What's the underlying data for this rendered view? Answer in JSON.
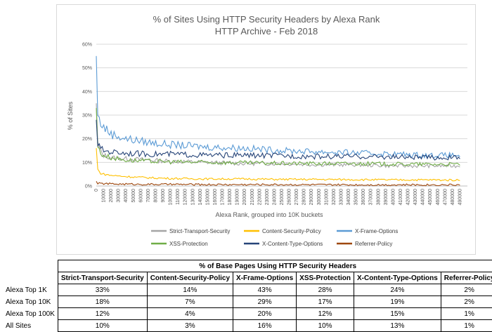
{
  "chart_data": {
    "type": "line",
    "title": "% of Sites Using HTTP Security Headers by Alexa Rank",
    "subtitle": "HTTP Archive - Feb 2018",
    "xlabel": "Alexa Rank, grouped into 10K buckets",
    "ylabel": "% of Sites",
    "ylim": [
      0,
      60
    ],
    "yticks": [
      "0%",
      "10%",
      "20%",
      "30%",
      "40%",
      "50%",
      "60%"
    ],
    "xticks": [
      "0",
      "10000",
      "20000",
      "30000",
      "40000",
      "50000",
      "60000",
      "70000",
      "80000",
      "90000",
      "100000",
      "110000",
      "120000",
      "130000",
      "140000",
      "150000",
      "160000",
      "170000",
      "180000",
      "190000",
      "200000",
      "210000",
      "220000",
      "230000",
      "240000",
      "250000",
      "260000",
      "270000",
      "280000",
      "290000",
      "300000",
      "310000",
      "320000",
      "330000",
      "340000",
      "350000",
      "360000",
      "370000",
      "380000",
      "390000",
      "400000",
      "410000",
      "420000",
      "430000",
      "440000",
      "450000",
      "460000",
      "470000",
      "480000",
      "490000"
    ],
    "grid": true,
    "legend_position": "bottom",
    "series": [
      {
        "name": "Strict-Transport-Security",
        "color": "#a5a5a5",
        "x": [
          0,
          1000,
          2000,
          5000,
          10000,
          20000,
          40000,
          70000,
          100000,
          150000,
          200000,
          250000,
          300000,
          350000,
          400000,
          450000,
          490000
        ],
        "values": [
          35,
          22,
          18,
          15,
          13,
          12,
          11.5,
          11,
          10.5,
          10,
          9.5,
          9.5,
          9,
          9,
          8.5,
          8.5,
          8.5
        ]
      },
      {
        "name": "Content-Security-Policy",
        "color": "#ffc000",
        "x": [
          0,
          1000,
          2000,
          5000,
          10000,
          20000,
          40000,
          70000,
          100000,
          150000,
          200000,
          250000,
          300000,
          350000,
          400000,
          450000,
          490000
        ],
        "values": [
          16,
          9,
          7,
          5.5,
          5,
          4.5,
          4,
          3.5,
          3.2,
          3,
          3,
          2.8,
          2.8,
          2.7,
          2.6,
          2.6,
          2.5
        ]
      },
      {
        "name": "X-Frame-Options",
        "color": "#5b9bd5",
        "x": [
          0,
          1000,
          2000,
          5000,
          10000,
          20000,
          40000,
          70000,
          100000,
          150000,
          200000,
          250000,
          300000,
          350000,
          400000,
          450000,
          490000
        ],
        "values": [
          55,
          40,
          30,
          27,
          25,
          22,
          20,
          18.5,
          17.5,
          16.5,
          16,
          15,
          14.5,
          14,
          13.5,
          13,
          13
        ]
      },
      {
        "name": "XSS-Protection",
        "color": "#70ad47",
        "x": [
          0,
          1000,
          2000,
          5000,
          10000,
          20000,
          40000,
          70000,
          100000,
          150000,
          200000,
          250000,
          300000,
          350000,
          400000,
          450000,
          490000
        ],
        "values": [
          33,
          22,
          17,
          14,
          13,
          12,
          11,
          10.5,
          10.2,
          10,
          9.8,
          9.6,
          9.5,
          9.5,
          9.3,
          9.2,
          9.2
        ]
      },
      {
        "name": "X-Content-Type-Options",
        "color": "#264478",
        "x": [
          0,
          1000,
          2000,
          5000,
          10000,
          20000,
          40000,
          70000,
          100000,
          150000,
          200000,
          250000,
          300000,
          350000,
          400000,
          450000,
          490000
        ],
        "values": [
          28,
          22,
          18,
          16,
          15,
          14.5,
          14,
          13.5,
          13.5,
          13,
          13,
          12.8,
          12.5,
          12.5,
          12.3,
          12,
          12
        ]
      },
      {
        "name": "Referrer-Policy",
        "color": "#9e480e",
        "x": [
          0,
          1000,
          2000,
          5000,
          10000,
          20000,
          40000,
          70000,
          100000,
          150000,
          200000,
          250000,
          300000,
          350000,
          400000,
          450000,
          490000
        ],
        "values": [
          2,
          1.5,
          1.2,
          1,
          1,
          0.9,
          0.8,
          0.7,
          0.7,
          0.6,
          0.6,
          0.6,
          0.5,
          0.5,
          0.5,
          0.5,
          0.5
        ]
      }
    ]
  },
  "table": {
    "title": "% of Base Pages Using HTTP Security Headers",
    "columns": [
      "Strict-Transport-Security",
      "Content-Security-Policy",
      "X-Frame-Options",
      "XSS-Protection",
      "X-Content-Type-Options",
      "Referrer-Policy"
    ],
    "rows": [
      {
        "label": "Alexa Top 1K",
        "values": [
          "33%",
          "14%",
          "43%",
          "28%",
          "24%",
          "2%"
        ]
      },
      {
        "label": "Alexa Top 10K",
        "values": [
          "18%",
          "7%",
          "29%",
          "17%",
          "19%",
          "2%"
        ]
      },
      {
        "label": "Alexa Top 100K",
        "values": [
          "12%",
          "4%",
          "20%",
          "12%",
          "15%",
          "1%"
        ]
      },
      {
        "label": "All Sites",
        "values": [
          "10%",
          "3%",
          "16%",
          "10%",
          "13%",
          "1%"
        ]
      }
    ]
  }
}
